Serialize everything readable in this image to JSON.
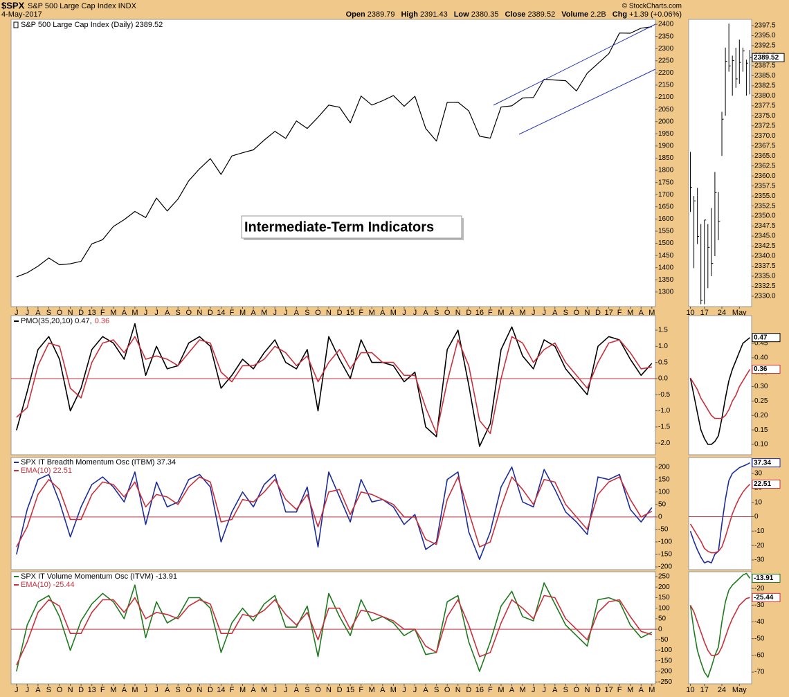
{
  "header": {
    "ticker": "$SPX",
    "name": "S&P 500 Large Cap Index INDX",
    "date": "4-May-2017",
    "credit": "© StockCharts.com",
    "quote": [
      {
        "label": "Open",
        "value": "2389.79"
      },
      {
        "label": "High",
        "value": "2391.43"
      },
      {
        "label": "Low",
        "value": "2380.35"
      },
      {
        "label": "Close",
        "value": "2389.52"
      },
      {
        "label": "Volume",
        "value": "2.2B"
      },
      {
        "label": "Chg",
        "value": "+1.39 (+0.06%)"
      }
    ]
  },
  "annotation": "Intermediate-Term Indicators",
  "chart_data": [
    {
      "type": "line",
      "title": "S&P 500 Large Cap Index (Daily) 2389.52",
      "color": "#000000",
      "categories": [
        "J",
        "J",
        "A",
        "S",
        "O",
        "N",
        "D",
        "13",
        "F",
        "M",
        "A",
        "M",
        "J",
        "J",
        "A",
        "S",
        "O",
        "N",
        "D",
        "14",
        "F",
        "M",
        "A",
        "M",
        "J",
        "J",
        "A",
        "S",
        "O",
        "N",
        "D",
        "15",
        "F",
        "M",
        "A",
        "M",
        "J",
        "J",
        "A",
        "S",
        "O",
        "N",
        "D",
        "16",
        "F",
        "M",
        "A",
        "M",
        "J",
        "J",
        "A",
        "S",
        "O",
        "N",
        "D",
        "17",
        "F",
        "M",
        "A",
        "M"
      ],
      "values": [
        1362,
        1379,
        1406,
        1440,
        1412,
        1416,
        1426,
        1498,
        1515,
        1569,
        1597,
        1631,
        1606,
        1686,
        1633,
        1682,
        1757,
        1806,
        1848,
        1783,
        1859,
        1872,
        1884,
        1924,
        1960,
        1931,
        2003,
        1972,
        2018,
        2068,
        2059,
        1995,
        2105,
        2068,
        2086,
        2107,
        2063,
        2104,
        1972,
        1920,
        2079,
        2080,
        2044,
        1940,
        1932,
        2060,
        2065,
        2097,
        2099,
        2174,
        2171,
        2168,
        2126,
        2199,
        2239,
        2279,
        2364,
        2363,
        2384,
        2389.52
      ],
      "ylim": [
        1240,
        2420
      ],
      "yticks": [
        1300,
        1350,
        1400,
        1450,
        1500,
        1550,
        1600,
        1650,
        1700,
        1750,
        1800,
        1850,
        1900,
        1950,
        2000,
        2050,
        2100,
        2150,
        2200,
        2250,
        2300,
        2350,
        2400
      ]
    },
    {
      "type": "line",
      "zero_line": true,
      "series": [
        {
          "name": "PMO(35,20,10) 0.47,",
          "color": "#000000",
          "values": [
            -1.6,
            -0.4,
            0.9,
            1.3,
            0.6,
            -1.0,
            -0.3,
            0.9,
            1.3,
            1.1,
            0.6,
            1.7,
            0.1,
            1.0,
            0.3,
            0.4,
            1.1,
            1.3,
            1.0,
            -0.3,
            0.1,
            0.6,
            0.3,
            0.8,
            1.2,
            0.5,
            0.3,
            0.9,
            -1.0,
            1.3,
            0.6,
            0.0,
            1.2,
            0.5,
            0.5,
            0.4,
            -0.1,
            0.2,
            -1.5,
            -1.8,
            0.9,
            1.5,
            -0.2,
            -2.1,
            -1.4,
            0.9,
            1.6,
            0.7,
            0.3,
            1.2,
            1.0,
            0.3,
            -0.1,
            -0.5,
            1.0,
            1.3,
            1.2,
            0.6,
            0.1,
            0.47
          ]
        },
        {
          "name": "0.36",
          "color": "#c8303c",
          "values": [
            -1.2,
            -0.9,
            0.4,
            1.1,
            1.0,
            -0.3,
            -0.6,
            0.5,
            1.1,
            1.2,
            0.8,
            1.3,
            0.6,
            0.7,
            0.6,
            0.4,
            0.8,
            1.2,
            1.1,
            0.2,
            -0.1,
            0.4,
            0.4,
            0.6,
            1.0,
            0.8,
            0.4,
            0.7,
            -0.1,
            0.5,
            0.9,
            0.3,
            0.8,
            0.8,
            0.5,
            0.5,
            0.1,
            0.1,
            -0.9,
            -1.7,
            -0.1,
            1.2,
            0.4,
            -1.3,
            -1.7,
            0.0,
            1.3,
            1.1,
            0.5,
            0.9,
            1.1,
            0.5,
            0.1,
            -0.3,
            0.5,
            1.1,
            1.2,
            0.8,
            0.3,
            0.36
          ]
        }
      ],
      "ylim": [
        -2.36,
        1.95
      ],
      "yticks": [
        1.5,
        {
          "value": 1,
          "label": "1.0"
        },
        0.5,
        {
          "value": 0,
          "label": "0.0"
        },
        -0.5,
        {
          "value": -1,
          "label": "-1.0"
        },
        -1.5,
        {
          "value": -2,
          "label": "-2.0"
        }
      ]
    },
    {
      "type": "line",
      "zero_line": true,
      "series": [
        {
          "name": "SPX IT Breadth Momentum Osc (ITBM) 37.34",
          "color": "#1c2c9c",
          "values": [
            -150,
            30,
            150,
            170,
            60,
            -80,
            40,
            130,
            160,
            120,
            60,
            180,
            -30,
            140,
            40,
            60,
            150,
            170,
            120,
            -100,
            20,
            100,
            40,
            130,
            170,
            20,
            20,
            120,
            -120,
            180,
            80,
            -20,
            150,
            60,
            70,
            40,
            -30,
            10,
            -130,
            -100,
            150,
            180,
            -60,
            -170,
            -60,
            120,
            200,
            60,
            40,
            190,
            110,
            20,
            -20,
            -70,
            160,
            150,
            170,
            30,
            -20,
            37.34
          ]
        },
        {
          "name": "EMA(10) 22.51",
          "color": "#c8303c",
          "values": [
            -120,
            -40,
            90,
            150,
            110,
            -10,
            -10,
            90,
            140,
            130,
            80,
            140,
            40,
            90,
            80,
            50,
            120,
            160,
            140,
            -20,
            -10,
            70,
            60,
            100,
            150,
            70,
            30,
            90,
            -40,
            100,
            110,
            10,
            100,
            90,
            70,
            50,
            0,
            0,
            -90,
            -110,
            70,
            160,
            20,
            -120,
            -100,
            40,
            160,
            110,
            50,
            150,
            140,
            50,
            0,
            -50,
            90,
            140,
            160,
            70,
            0,
            22.51
          ]
        }
      ],
      "ylim": [
        -211,
        238
      ],
      "yticks": [
        200,
        150,
        100,
        50,
        0,
        -50,
        -100,
        -150,
        -200
      ]
    },
    {
      "type": "line",
      "zero_line": true,
      "categories": [
        "J",
        "J",
        "A",
        "S",
        "O",
        "N",
        "D",
        "13",
        "F",
        "M",
        "A",
        "M",
        "J",
        "J",
        "A",
        "S",
        "O",
        "N",
        "D",
        "14",
        "F",
        "M",
        "A",
        "M",
        "J",
        "J",
        "A",
        "S",
        "O",
        "N",
        "D",
        "15",
        "F",
        "M",
        "A",
        "M",
        "J",
        "J",
        "A",
        "S",
        "O",
        "N",
        "D",
        "16",
        "F",
        "M",
        "A",
        "M",
        "J",
        "J",
        "A",
        "S",
        "O",
        "N",
        "D",
        "17",
        "F",
        "M",
        "A",
        "M"
      ],
      "series": [
        {
          "name": "SPX IT Volume Momentum Osc (ITVM) -13.91",
          "color": "#1f7a1f",
          "values": [
            -200,
            20,
            130,
            160,
            60,
            -100,
            40,
            120,
            170,
            130,
            50,
            210,
            -40,
            130,
            30,
            60,
            150,
            150,
            100,
            -110,
            30,
            100,
            40,
            120,
            160,
            10,
            10,
            110,
            -130,
            170,
            60,
            -30,
            140,
            40,
            60,
            30,
            -30,
            0,
            -120,
            -110,
            130,
            160,
            -60,
            -200,
            -60,
            110,
            180,
            60,
            40,
            220,
            120,
            20,
            -30,
            -80,
            140,
            150,
            130,
            20,
            -40,
            -13.91
          ]
        },
        {
          "name": "EMA(10) -25.44",
          "color": "#c8303c",
          "values": [
            -170,
            -60,
            80,
            140,
            110,
            -20,
            -20,
            80,
            140,
            140,
            80,
            150,
            50,
            80,
            70,
            50,
            110,
            140,
            120,
            -20,
            -20,
            70,
            60,
            90,
            140,
            70,
            20,
            80,
            -50,
            100,
            100,
            0,
            90,
            80,
            60,
            40,
            0,
            0,
            -80,
            -110,
            60,
            140,
            20,
            -130,
            -110,
            30,
            140,
            100,
            50,
            160,
            150,
            50,
            0,
            -50,
            80,
            130,
            140,
            60,
            -10,
            -25.44
          ]
        }
      ],
      "ylim": [
        -259,
        273
      ],
      "yticks": [
        250,
        200,
        150,
        100,
        50,
        0,
        -50,
        -100,
        -150,
        -200,
        -250
      ]
    },
    {
      "type": "ohlc",
      "color": "#000000",
      "categories": [
        "10",
        null,
        null,
        null,
        "17",
        null,
        null,
        null,
        null,
        "24",
        null,
        null,
        null,
        null,
        "May",
        null,
        null,
        null
      ],
      "high": [
        2366,
        2355,
        2357,
        2348,
        2349,
        2348,
        2352,
        2361,
        2356,
        2376,
        2392,
        2398,
        2390,
        2392,
        2394,
        2392,
        2389,
        2391.43
      ],
      "low": [
        2351,
        2337,
        2343,
        2328,
        2328,
        2332,
        2335,
        2340,
        2344,
        2365,
        2375,
        2386,
        2380,
        2382,
        2383,
        2386,
        2380,
        2380.35
      ],
      "close": [
        2357.16,
        2353.78,
        2344.93,
        2328.95,
        2349.01,
        2342.19,
        2338.17,
        2355.84,
        2348.69,
        2374.15,
        2388.61,
        2387.45,
        2388.77,
        2384.2,
        2388.33,
        2391.17,
        2388.13,
        2389.52
      ],
      "ylim": [
        2327.4,
        2399.05
      ],
      "yticks": [
        {
          "value": 2330,
          "label": "2330.0"
        },
        2332.5,
        {
          "value": 2335,
          "label": "2335.0"
        },
        2337.5,
        {
          "value": 2340,
          "label": "2340.0"
        },
        2342.5,
        {
          "value": 2345,
          "label": "2345.0"
        },
        2347.5,
        {
          "value": 2350,
          "label": "2350.0"
        },
        2352.5,
        {
          "value": 2355,
          "label": "2355.0"
        },
        2357.5,
        {
          "value": 2360,
          "label": "2360.0"
        },
        2362.5,
        {
          "value": 2365,
          "label": "2365.0"
        },
        2367.5,
        {
          "value": 2370,
          "label": "2370.0"
        },
        2372.5,
        {
          "value": 2375,
          "label": "2375.0"
        },
        2377.5,
        {
          "value": 2380,
          "label": "2380.0"
        },
        2382.5,
        {
          "value": 2385,
          "label": "2385.0"
        },
        2387.5,
        {
          "value": 2390,
          "label": "2390.0"
        },
        2392.5,
        {
          "value": 2395,
          "label": "2395.0"
        },
        2397.5
      ]
    },
    {
      "type": "line",
      "series": [
        {
          "color": "#000000",
          "values": [
            0.33,
            0.27,
            0.21,
            0.15,
            0.12,
            0.1,
            0.1,
            0.11,
            0.13,
            0.19,
            0.26,
            0.32,
            0.36,
            0.39,
            0.42,
            0.45,
            0.46,
            0.47
          ]
        },
        {
          "color": "#c8303c",
          "values": [
            0.33,
            0.31,
            0.29,
            0.26,
            0.24,
            0.22,
            0.2,
            0.19,
            0.19,
            0.19,
            0.2,
            0.22,
            0.25,
            0.27,
            0.3,
            0.32,
            0.34,
            0.36
          ]
        }
      ],
      "ylim": [
        0.064,
        0.546
      ],
      "yticks": [
        0.45,
        {
          "value": 0.4,
          "label": "0.40"
        },
        0.35,
        {
          "value": 0.3,
          "label": "0.30"
        },
        0.25,
        {
          "value": 0.2,
          "label": "0.20"
        },
        0.15,
        {
          "value": 0.1,
          "label": "0.10"
        }
      ]
    },
    {
      "type": "line",
      "zero_line": true,
      "series": [
        {
          "color": "#1c2c9c",
          "values": [
            -10,
            -17,
            -23,
            -28,
            -32,
            -31,
            -32,
            -26,
            -24,
            -5,
            12,
            25,
            30,
            32,
            34,
            35,
            36,
            37.34
          ]
        },
        {
          "color": "#c8303c",
          "values": [
            -5,
            -9,
            -13,
            -17,
            -22,
            -24,
            -25,
            -25,
            -24,
            -21,
            -14,
            -6,
            2,
            8,
            13,
            17,
            20,
            22.51
          ]
        }
      ],
      "ylim": [
        -36.7,
        41
      ],
      "yticks": [
        30,
        20,
        10,
        0,
        -10,
        -20,
        -30
      ]
    },
    {
      "type": "line",
      "categories": [
        "10",
        null,
        null,
        null,
        "17",
        null,
        null,
        null,
        null,
        "24",
        null,
        null,
        null,
        null,
        "May",
        null,
        null,
        null
      ],
      "series": [
        {
          "color": "#1f7a1f",
          "values": [
            -30,
            -45,
            -57,
            -64,
            -70,
            -73,
            -67,
            -60,
            -55,
            -40,
            -28,
            -21,
            -18,
            -16,
            -14,
            -12,
            -11,
            -13.91
          ]
        },
        {
          "color": "#c8303c",
          "values": [
            -30,
            -34,
            -40,
            -46,
            -52,
            -57,
            -60,
            -60,
            -59,
            -55,
            -49,
            -43,
            -38,
            -34,
            -30,
            -28,
            -26,
            -25.44
          ]
        }
      ],
      "ylim": [
        -77,
        -10
      ],
      "yticks": [
        -20,
        -30,
        -40,
        -50,
        -60,
        -70
      ]
    }
  ]
}
